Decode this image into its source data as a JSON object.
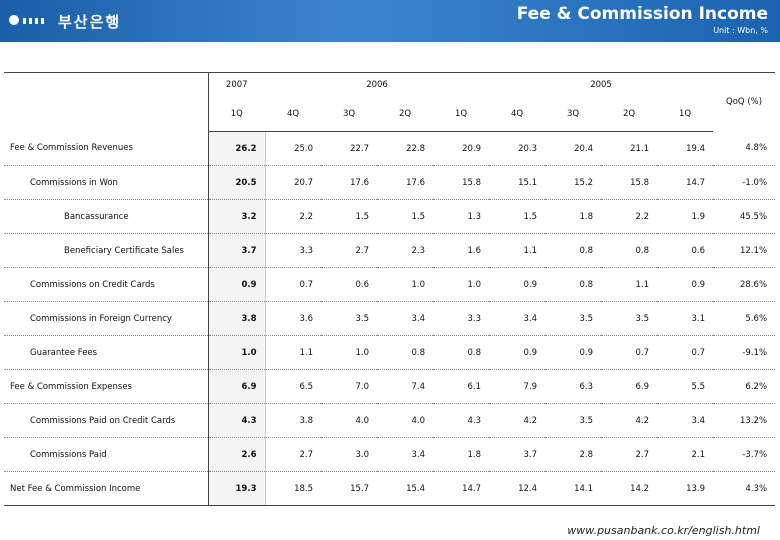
{
  "header": {
    "logo": "부산은행",
    "title": "Fee & Commission Income",
    "unit": "Unit : Wbn, %"
  },
  "table": {
    "years": [
      "2007",
      "2006",
      "2005"
    ],
    "quarters": [
      "1Q",
      "4Q",
      "3Q",
      "2Q",
      "1Q",
      "4Q",
      "3Q",
      "2Q",
      "1Q"
    ],
    "change_header": "QoQ (%)",
    "rows": [
      {
        "label": "Fee & Commission Revenues",
        "values": [
          "26.2",
          "25.0",
          "22.7",
          "22.8",
          "20.9",
          "20.3",
          "20.4",
          "21.1",
          "19.4",
          "4.8%"
        ]
      },
      {
        "label": "Commissions in Won",
        "values": [
          "20.5",
          "20.7",
          "17.6",
          "17.6",
          "15.8",
          "15.1",
          "15.2",
          "15.8",
          "14.7",
          "-1.0%"
        ]
      },
      {
        "label": "Bancassurance",
        "values": [
          "3.2",
          "2.2",
          "1.5",
          "1.5",
          "1.3",
          "1.5",
          "1.8",
          "2.2",
          "1.9",
          "45.5%"
        ]
      },
      {
        "label": "Beneficiary Certificate Sales",
        "values": [
          "3.7",
          "3.3",
          "2.7",
          "2.3",
          "1.6",
          "1.1",
          "0.8",
          "0.8",
          "0.6",
          "12.1%"
        ]
      },
      {
        "label": "Commissions on Credit Cards",
        "values": [
          "0.9",
          "0.7",
          "0.6",
          "1.0",
          "1.0",
          "0.9",
          "0.8",
          "1.1",
          "0.9",
          "28.6%"
        ]
      },
      {
        "label": "Commissions in Foreign Currency",
        "values": [
          "3.8",
          "3.6",
          "3.5",
          "3.4",
          "3.3",
          "3.4",
          "3.5",
          "3.5",
          "3.1",
          "5.6%"
        ]
      },
      {
        "label": "Guarantee Fees",
        "values": [
          "1.0",
          "1.1",
          "1.0",
          "0.8",
          "0.8",
          "0.9",
          "0.9",
          "0.7",
          "0.7",
          "-9.1%"
        ]
      },
      {
        "label": "Fee & Commission Expenses",
        "values": [
          "6.9",
          "6.5",
          "7.0",
          "7.4",
          "6.1",
          "7.9",
          "6.3",
          "6.9",
          "5.5",
          "6.2%"
        ]
      },
      {
        "label": "Commissions Paid on Credit Cards",
        "values": [
          "4.3",
          "3.8",
          "4.0",
          "4.0",
          "4.3",
          "4.2",
          "3.5",
          "4.2",
          "3.4",
          "13.2%"
        ]
      },
      {
        "label": "Commissions Paid",
        "values": [
          "2.6",
          "2.7",
          "3.0",
          "3.4",
          "1.8",
          "3.7",
          "2.8",
          "2.7",
          "2.1",
          "-3.7%"
        ]
      },
      {
        "label": "Net Fee & Commission Income",
        "values": [
          "19.3",
          "18.5",
          "15.7",
          "15.4",
          "14.7",
          "12.4",
          "14.1",
          "14.2",
          "13.9",
          "4.3%"
        ]
      }
    ]
  },
  "footer": {
    "url": "www.pusanbank.co.kr/english.html"
  }
}
